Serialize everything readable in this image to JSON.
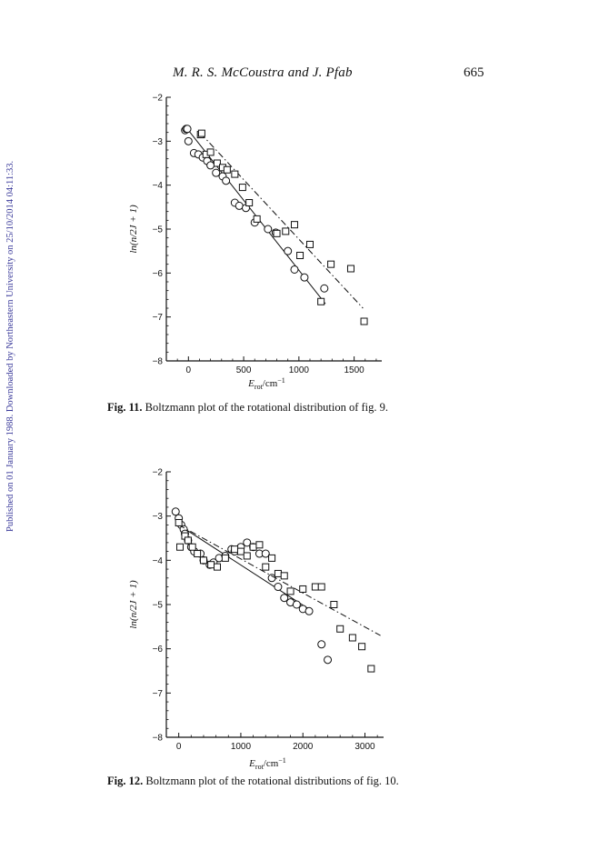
{
  "header": {
    "authors": "M. R. S. McCoustra and J. Pfab",
    "page_number": "665"
  },
  "sidebar_text": "Published on 01 January 1988. Downloaded by Northeastern University on 25/10/2014 04:11:33.",
  "figures": [
    {
      "caption_label": "Fig. 11.",
      "caption_text": "Boltzmann plot of the rotational distribution of fig. 9.",
      "chart_data": {
        "type": "scatter",
        "xlabel": "E_rot/cm⁻¹",
        "ylabel": "ln(n/2J + 1)",
        "xlim": [
          -200,
          1750
        ],
        "ylim": [
          -8,
          -2
        ],
        "xticks": [
          0,
          500,
          1000,
          1500
        ],
        "yticks": [
          -2,
          -3,
          -4,
          -5,
          -6,
          -7,
          -8
        ],
        "series": [
          {
            "marker": "circle",
            "points": [
              [
                -30,
                -2.75
              ],
              [
                -20,
                -2.72
              ],
              [
                -10,
                -2.72
              ],
              [
                0,
                -3.0
              ],
              [
                50,
                -3.27
              ],
              [
                90,
                -3.3
              ],
              [
                130,
                -3.37
              ],
              [
                170,
                -3.45
              ],
              [
                200,
                -3.55
              ],
              [
                250,
                -3.72
              ],
              [
                310,
                -3.8
              ],
              [
                340,
                -3.9
              ],
              [
                420,
                -4.4
              ],
              [
                460,
                -4.47
              ],
              [
                520,
                -4.52
              ],
              [
                600,
                -4.85
              ],
              [
                720,
                -5.0
              ],
              [
                790,
                -5.08
              ],
              [
                900,
                -5.5
              ],
              [
                960,
                -5.92
              ],
              [
                1050,
                -6.1
              ],
              [
                1230,
                -6.35
              ]
            ],
            "fit_line": [
              [
                -10,
                -2.72
              ],
              [
                1240,
                -6.7
              ]
            ]
          },
          {
            "marker": "square",
            "points": [
              [
                110,
                -2.85
              ],
              [
                120,
                -2.82
              ],
              [
                160,
                -3.3
              ],
              [
                200,
                -3.25
              ],
              [
                260,
                -3.5
              ],
              [
                310,
                -3.6
              ],
              [
                350,
                -3.65
              ],
              [
                420,
                -3.75
              ],
              [
                490,
                -4.05
              ],
              [
                550,
                -4.4
              ],
              [
                620,
                -4.77
              ],
              [
                800,
                -5.1
              ],
              [
                880,
                -5.05
              ],
              [
                960,
                -4.9
              ],
              [
                1010,
                -5.6
              ],
              [
                1100,
                -5.35
              ],
              [
                1200,
                -6.65
              ],
              [
                1290,
                -5.8
              ],
              [
                1470,
                -5.9
              ],
              [
                1590,
                -7.1
              ]
            ],
            "fit_line": [
              [
                110,
                -2.82
              ],
              [
                1580,
                -6.8
              ]
            ]
          }
        ]
      }
    },
    {
      "caption_label": "Fig. 12.",
      "caption_text": "Boltzmann plot of the rotational distributions of fig. 10.",
      "chart_data": {
        "type": "scatter",
        "xlabel": "E_rot/cm⁻¹",
        "ylabel": "ln(n/2J + 1)",
        "xlim": [
          -200,
          3300
        ],
        "ylim": [
          -8,
          -2
        ],
        "xticks": [
          0,
          1000,
          2000,
          3000
        ],
        "yticks": [
          -2,
          -3,
          -4,
          -5,
          -6,
          -7,
          -8
        ],
        "series": [
          {
            "marker": "circle",
            "points": [
              [
                -50,
                -2.9
              ],
              [
                0,
                -3.05
              ],
              [
                40,
                -3.2
              ],
              [
                80,
                -3.3
              ],
              [
                100,
                -3.4
              ],
              [
                150,
                -3.55
              ],
              [
                200,
                -3.7
              ],
              [
                250,
                -3.8
              ],
              [
                350,
                -3.85
              ],
              [
                400,
                -4.0
              ],
              [
                500,
                -4.1
              ],
              [
                560,
                -4.05
              ],
              [
                650,
                -3.95
              ],
              [
                750,
                -3.9
              ],
              [
                850,
                -3.75
              ],
              [
                900,
                -3.8
              ],
              [
                1000,
                -3.7
              ],
              [
                1100,
                -3.6
              ],
              [
                1200,
                -3.7
              ],
              [
                1300,
                -3.85
              ],
              [
                1400,
                -3.85
              ],
              [
                1500,
                -4.4
              ],
              [
                1600,
                -4.6
              ],
              [
                1700,
                -4.85
              ],
              [
                1800,
                -4.95
              ],
              [
                1900,
                -5.0
              ],
              [
                2000,
                -5.1
              ],
              [
                2100,
                -5.15
              ],
              [
                2300,
                -5.9
              ],
              [
                2400,
                -6.25
              ]
            ],
            "fit_line": [
              [
                0,
                -3.2
              ],
              [
                2150,
                -5.15
              ]
            ]
          },
          {
            "marker": "square",
            "points": [
              [
                0,
                -3.15
              ],
              [
                20,
                -3.7
              ],
              [
                100,
                -3.45
              ],
              [
                150,
                -3.55
              ],
              [
                220,
                -3.7
              ],
              [
                300,
                -3.85
              ],
              [
                400,
                -4.0
              ],
              [
                520,
                -4.1
              ],
              [
                620,
                -4.15
              ],
              [
                750,
                -3.95
              ],
              [
                900,
                -3.75
              ],
              [
                1000,
                -3.8
              ],
              [
                1100,
                -3.9
              ],
              [
                1200,
                -3.7
              ],
              [
                1300,
                -3.65
              ],
              [
                1400,
                -4.15
              ],
              [
                1500,
                -3.95
              ],
              [
                1600,
                -4.3
              ],
              [
                1700,
                -4.35
              ],
              [
                1800,
                -4.7
              ],
              [
                2000,
                -4.65
              ],
              [
                2200,
                -4.6
              ],
              [
                2300,
                -4.6
              ],
              [
                2500,
                -5.0
              ],
              [
                2600,
                -5.55
              ],
              [
                2800,
                -5.75
              ],
              [
                2950,
                -5.95
              ],
              [
                3100,
                -6.45
              ]
            ],
            "fit_line": [
              [
                0,
                -3.2
              ],
              [
                3250,
                -5.7
              ]
            ]
          }
        ]
      }
    }
  ]
}
